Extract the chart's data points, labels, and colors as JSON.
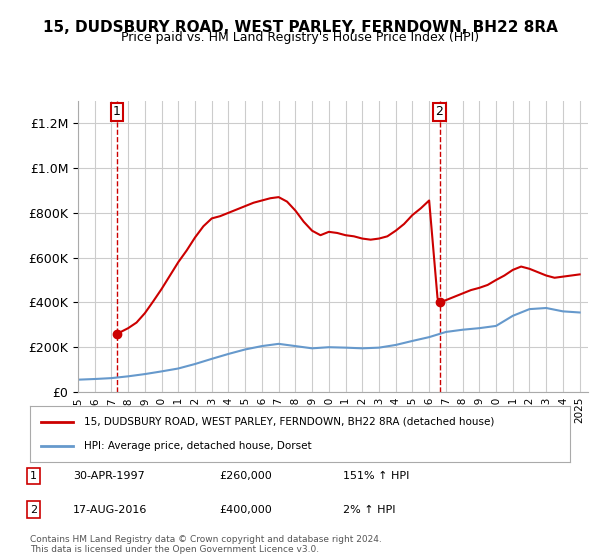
{
  "title": "15, DUDSBURY ROAD, WEST PARLEY, FERNDOWN, BH22 8RA",
  "subtitle": "Price paid vs. HM Land Registry's House Price Index (HPI)",
  "legend_line1": "15, DUDSBURY ROAD, WEST PARLEY, FERNDOWN, BH22 8RA (detached house)",
  "legend_line2": "HPI: Average price, detached house, Dorset",
  "footnote": "Contains HM Land Registry data © Crown copyright and database right 2024.\nThis data is licensed under the Open Government Licence v3.0.",
  "sale1_label": "1",
  "sale1_date": "30-APR-1997",
  "sale1_price": 260000,
  "sale1_hpi": "151% ↑ HPI",
  "sale2_label": "2",
  "sale2_date": "17-AUG-2016",
  "sale2_price": 400000,
  "sale2_hpi": "2% ↑ HPI",
  "sale1_x": 1997.33,
  "sale2_x": 2016.62,
  "price_line_color": "#cc0000",
  "hpi_line_color": "#6699cc",
  "sale_marker_color": "#cc0000",
  "dashed_line_color": "#cc0000",
  "ylim": [
    0,
    1300000
  ],
  "xlim_start": 1995,
  "xlim_end": 2025.5,
  "background_color": "#ffffff",
  "grid_color": "#cccccc",
  "hpi_years": [
    1995,
    1996,
    1997,
    1998,
    1999,
    2000,
    2001,
    2002,
    2003,
    2004,
    2005,
    2006,
    2007,
    2008,
    2009,
    2010,
    2011,
    2012,
    2013,
    2014,
    2015,
    2016,
    2017,
    2018,
    2019,
    2020,
    2021,
    2022,
    2023,
    2024,
    2025
  ],
  "hpi_values": [
    55000,
    58000,
    62000,
    70000,
    80000,
    92000,
    105000,
    125000,
    148000,
    170000,
    190000,
    205000,
    215000,
    205000,
    195000,
    200000,
    198000,
    195000,
    198000,
    210000,
    228000,
    245000,
    268000,
    278000,
    285000,
    295000,
    340000,
    370000,
    375000,
    360000,
    355000
  ],
  "price_hpi_years": [
    1997.33,
    1997.5,
    1998,
    1998.5,
    1999,
    1999.5,
    2000,
    2000.5,
    2001,
    2001.5,
    2002,
    2002.5,
    2003,
    2003.5,
    2004,
    2004.5,
    2005,
    2005.5,
    2006,
    2006.5,
    2007,
    2007.5,
    2008,
    2008.5,
    2009,
    2009.5,
    2010,
    2010.5,
    2011,
    2011.5,
    2012,
    2012.5,
    2013,
    2013.5,
    2014,
    2014.5,
    2015,
    2015.5,
    2016,
    2016.5,
    2016.62,
    2017,
    2017.5,
    2018,
    2018.5,
    2019,
    2019.5,
    2020,
    2020.5,
    2021,
    2021.5,
    2022,
    2022.5,
    2023,
    2023.5,
    2024,
    2024.5,
    2025
  ],
  "price_hpi_values": [
    260000,
    266000,
    285000,
    310000,
    352000,
    405000,
    460000,
    520000,
    580000,
    632000,
    690000,
    740000,
    775000,
    785000,
    800000,
    815000,
    830000,
    845000,
    855000,
    865000,
    870000,
    850000,
    810000,
    760000,
    720000,
    700000,
    715000,
    710000,
    700000,
    695000,
    685000,
    680000,
    685000,
    695000,
    720000,
    750000,
    790000,
    820000,
    855000,
    420000,
    400000,
    410000,
    425000,
    440000,
    455000,
    465000,
    478000,
    500000,
    520000,
    545000,
    560000,
    550000,
    535000,
    520000,
    510000,
    515000,
    520000,
    525000
  ]
}
